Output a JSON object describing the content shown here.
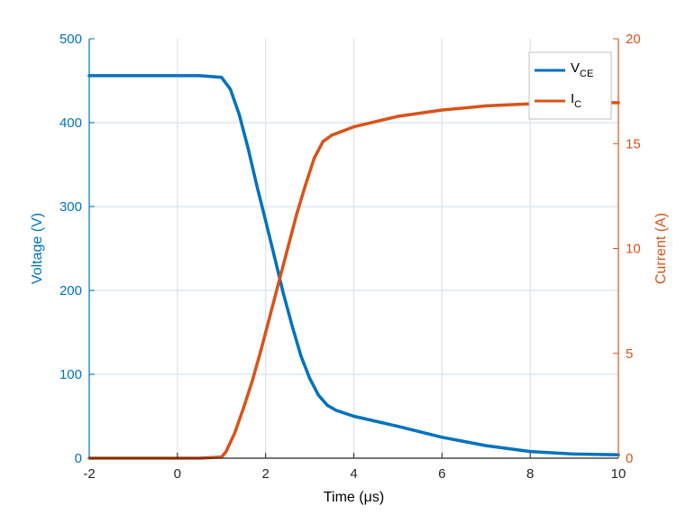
{
  "chart_data": {
    "type": "line",
    "xlabel": "Time (μs)",
    "ylabel_left": "Voltage (V)",
    "ylabel_right": "Current (A)",
    "xlim": [
      -2,
      10
    ],
    "ylim_left": [
      0,
      500
    ],
    "ylim_right": [
      0,
      20
    ],
    "xticks": [
      "-2",
      "0",
      "2",
      "4",
      "6",
      "8",
      "10"
    ],
    "yticks_left": [
      "0",
      "100",
      "200",
      "300",
      "400",
      "500"
    ],
    "yticks_right": [
      "0",
      "5",
      "10",
      "15",
      "20"
    ],
    "grid": true,
    "legend_position": "top-right",
    "colors": {
      "left_axis": "#0072BD",
      "right_axis": "#D95319",
      "grid": "#dde7ef"
    },
    "series": [
      {
        "name": "V",
        "name_sub": "CE",
        "axis": "left",
        "color": "#0072BD",
        "x": [
          -2,
          -1,
          0,
          0.5,
          1.0,
          1.2,
          1.4,
          1.6,
          1.8,
          2.0,
          2.2,
          2.4,
          2.6,
          2.8,
          3.0,
          3.2,
          3.4,
          3.6,
          4.0,
          5.0,
          6.0,
          7.0,
          8.0,
          9.0,
          10.0
        ],
        "y": [
          456,
          456,
          456,
          456,
          454,
          440,
          410,
          370,
          325,
          283,
          240,
          197,
          158,
          122,
          95,
          75,
          63,
          57,
          50,
          38,
          25,
          15,
          8,
          5,
          4
        ]
      },
      {
        "name": "I",
        "name_sub": "C",
        "axis": "right",
        "color": "#D95319",
        "x": [
          -2,
          -1,
          0,
          0.5,
          1.0,
          1.1,
          1.3,
          1.5,
          1.7,
          1.9,
          2.1,
          2.3,
          2.5,
          2.7,
          2.9,
          3.1,
          3.3,
          3.5,
          4.0,
          5.0,
          6.0,
          7.0,
          8.0,
          9.0,
          10.0
        ],
        "y": [
          0,
          0,
          0,
          0,
          0.05,
          0.3,
          1.2,
          2.4,
          3.7,
          5.2,
          6.8,
          8.4,
          10.0,
          11.6,
          13.0,
          14.3,
          15.1,
          15.4,
          15.8,
          16.3,
          16.6,
          16.8,
          16.9,
          16.95,
          16.95
        ]
      }
    ]
  }
}
